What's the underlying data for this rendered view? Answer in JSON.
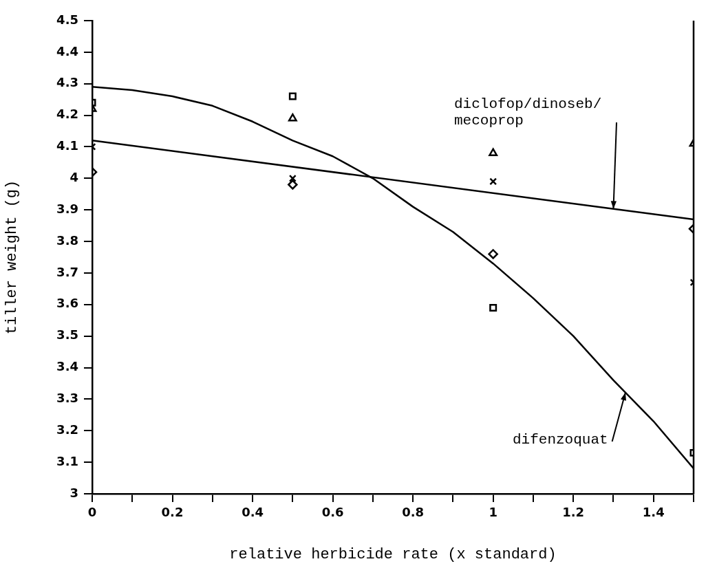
{
  "chart_data": {
    "type": "scatter",
    "xlabel": "relative herbicide rate (x standard)",
    "ylabel": "tiller weight (g)",
    "xlim": [
      0,
      1.5
    ],
    "ylim": [
      3,
      4.5
    ],
    "xticks": [
      0,
      {
        "value": 0.1,
        "label": null
      },
      0.2,
      {
        "value": 0.3,
        "label": null
      },
      0.4,
      {
        "value": 0.5,
        "label": null
      },
      0.6,
      {
        "value": 0.7,
        "label": null
      },
      0.8,
      {
        "value": 0.9,
        "label": null
      },
      1,
      {
        "value": 1.1,
        "label": null
      },
      1.2,
      {
        "value": 1.3,
        "label": null
      },
      1.4,
      {
        "value": 1.5,
        "label": null
      }
    ],
    "yticks": [
      3,
      3.1,
      3.2,
      3.3,
      3.4,
      3.5,
      3.6,
      3.7,
      3.8,
      3.9,
      4,
      4.1,
      4.2,
      4.3,
      4.4,
      4.5
    ],
    "grid": false,
    "legend": false,
    "series": [
      {
        "marker": "square",
        "color": "#000000",
        "x": [
          0,
          0.5,
          1,
          1.5
        ],
        "values": [
          4.24,
          4.26,
          3.59,
          3.13
        ]
      },
      {
        "marker": "triangle",
        "color": "#000000",
        "x": [
          0,
          0.5,
          1,
          1.5
        ],
        "values": [
          4.22,
          4.19,
          4.08,
          4.11
        ]
      },
      {
        "marker": "cross",
        "color": "#000000",
        "x": [
          0,
          0.5,
          1,
          1.5
        ],
        "values": [
          4.1,
          4.0,
          3.99,
          3.67
        ]
      },
      {
        "marker": "diamond",
        "color": "#000000",
        "x": [
          0,
          0.5,
          1,
          1.5
        ],
        "values": [
          4.02,
          3.98,
          3.76,
          3.84
        ]
      },
      {
        "type": "line",
        "name": "diclofop/dinoseb/mecoprop",
        "marker": "none",
        "line_style": "solid",
        "color": "#000000",
        "x": [
          0,
          1.5
        ],
        "values": [
          4.12,
          3.87
        ]
      },
      {
        "type": "line",
        "name": "difenzoquat",
        "marker": "none",
        "line_style": "solid",
        "color": "#000000",
        "x": [
          0,
          0.1,
          0.2,
          0.3,
          0.4,
          0.5,
          0.6,
          0.7,
          0.8,
          0.9,
          1,
          1.1,
          1.2,
          1.3,
          1.4,
          1.5
        ],
        "values": [
          4.29,
          4.28,
          4.26,
          4.23,
          4.18,
          4.12,
          4.07,
          4.0,
          3.91,
          3.83,
          3.73,
          3.62,
          3.5,
          3.36,
          3.23,
          3.08
        ]
      }
    ]
  }
}
